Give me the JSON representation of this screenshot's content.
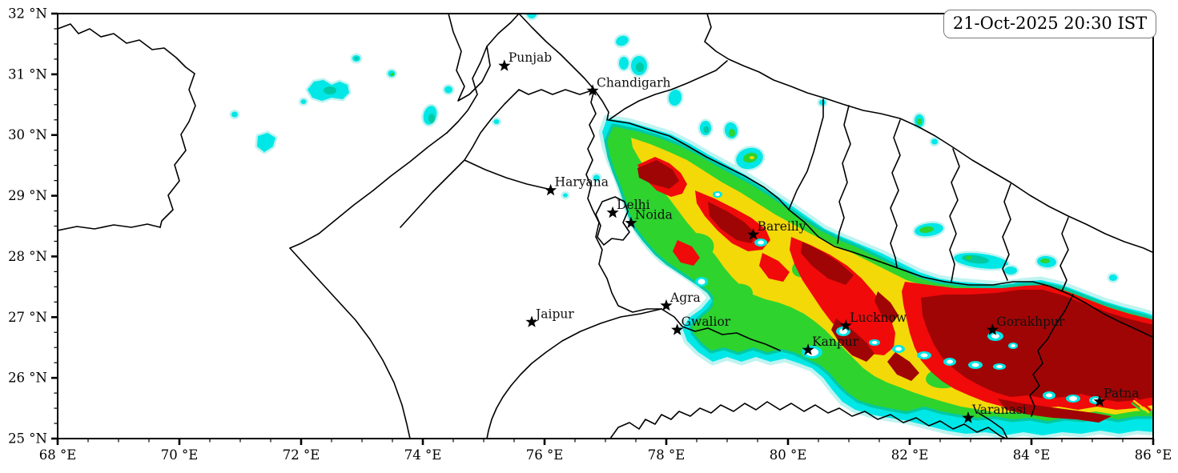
{
  "title_box": {
    "timestamp": "21-Oct-2025 20:30 IST"
  },
  "axes": {
    "x": {
      "label_suffix": " °E",
      "range": [
        68,
        86
      ],
      "major_ticks": [
        68,
        70,
        72,
        74,
        76,
        78,
        80,
        82,
        84,
        86
      ],
      "minor_step": 0.5
    },
    "y": {
      "label_suffix": " °N",
      "range": [
        25,
        32
      ],
      "major_ticks": [
        32,
        31,
        30,
        29,
        28,
        27,
        26,
        25
      ],
      "minor_step": 0.25
    }
  },
  "cities": [
    {
      "name": "Punjab",
      "lon": 75.34,
      "lat": 31.14
    },
    {
      "name": "Chandigarh",
      "lon": 76.79,
      "lat": 30.73
    },
    {
      "name": "Haryana",
      "lon": 76.1,
      "lat": 29.09
    },
    {
      "name": "Delhi",
      "lon": 77.12,
      "lat": 28.72
    },
    {
      "name": "Noida",
      "lon": 77.42,
      "lat": 28.55
    },
    {
      "name": "Bareilly",
      "lon": 79.43,
      "lat": 28.36
    },
    {
      "name": "Jaipur",
      "lon": 75.79,
      "lat": 26.92
    },
    {
      "name": "Agra",
      "lon": 78.0,
      "lat": 27.19
    },
    {
      "name": "Gwalior",
      "lon": 78.18,
      "lat": 26.79
    },
    {
      "name": "Lucknow",
      "lon": 80.95,
      "lat": 26.86
    },
    {
      "name": "Kanpur",
      "lon": 80.33,
      "lat": 26.46
    },
    {
      "name": "Gorakhpur",
      "lon": 83.36,
      "lat": 26.79
    },
    {
      "name": "Varanasi",
      "lon": 82.96,
      "lat": 25.34
    },
    {
      "name": "Patna",
      "lon": 85.12,
      "lat": 25.61
    }
  ],
  "palette": {
    "level1_palecyan": "#bff3f0",
    "level2_cyan": "#00e7e7",
    "level3_teal": "#00c9a3",
    "level4_green": "#2ed32e",
    "level5_darkgreen": "#0ca10c",
    "level6_yellow": "#f3d908",
    "level7_red": "#f00a0a",
    "level8_maroon": "#a00505",
    "boundary": "#000000",
    "background": "#ffffff"
  },
  "chart_data": {
    "type": "heatmap",
    "projection": "longitude-latitude (degrees)",
    "x_range_deg_east": [
      68,
      86
    ],
    "y_range_deg_north": [
      25,
      32
    ],
    "x_tick_labels": [
      "68 °E",
      "70 °E",
      "72 °E",
      "74 °E",
      "76 °E",
      "78 °E",
      "80 °E",
      "82 °E",
      "84 °E",
      "86 °E"
    ],
    "y_tick_labels": [
      "25 °N",
      "26 °N",
      "27 °N",
      "28 °N",
      "29 °N",
      "30 °N",
      "31 °N",
      "32 °N"
    ],
    "timestamp": "21-Oct-2025 20:30 IST",
    "legend": "none shown (no colorbar in image)",
    "intensity_levels_low_to_high": [
      "pale-cyan",
      "cyan",
      "teal",
      "green",
      "dark-green",
      "yellow",
      "red",
      "dark-red"
    ],
    "pattern_summary": "High-intensity plume stretched along the Indo-Gangetic plain from about 77E,30.2N near Chandigarh southeast to 86E,25.5N over Bihar. Dark-red maxima near Bareilly, northwest of Lucknow toward the Nepal border, south of Lucknow, and a large dark-red mass covering eastern Uttar Pradesh and Bihar around Gorakhpur and Patna. Scattered small cyan cells over Punjab, Himachal and along the Nepal Himalaya; white gaps near Kanpur and Agra."
  }
}
